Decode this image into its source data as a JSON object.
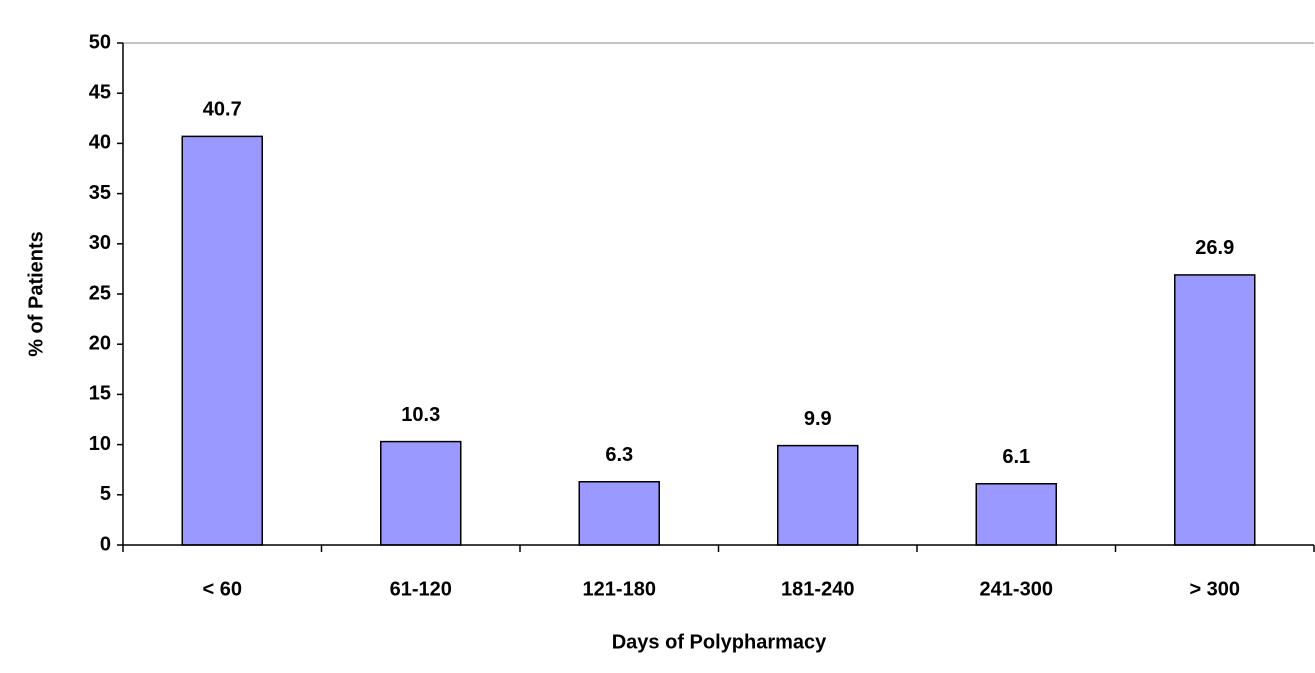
{
  "chart_data": {
    "type": "bar",
    "x_label": "Days of Polypharmacy",
    "y_label": "% of Patients",
    "categories": [
      "< 60",
      "61-120",
      "121-180",
      "181-240",
      "241-300",
      "> 300"
    ],
    "values": [
      40.7,
      10.3,
      6.3,
      9.9,
      6.1,
      26.9
    ],
    "color": "#9999ff",
    "ylim": [
      0,
      50
    ],
    "yticks": [
      0,
      5,
      10,
      15,
      20,
      25,
      30,
      35,
      40,
      45,
      50
    ],
    "grid": false
  }
}
